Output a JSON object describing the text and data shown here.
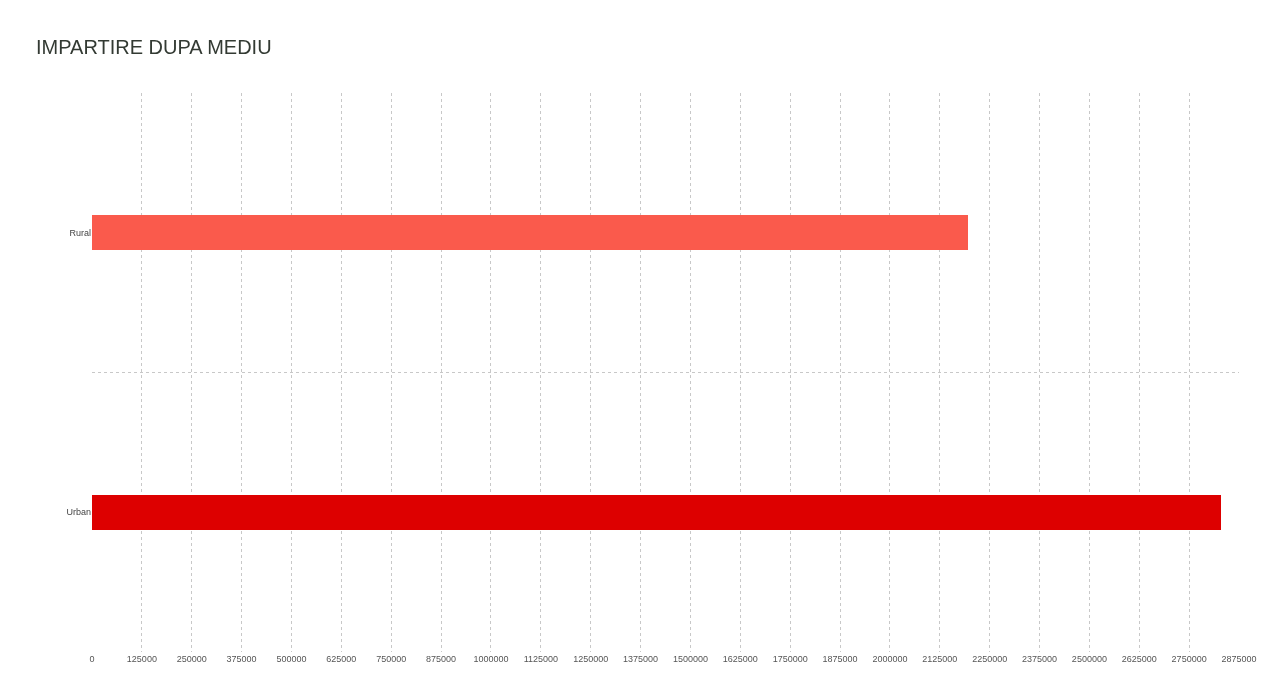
{
  "chart_data": {
    "type": "bar",
    "title": "IMPARTIRE DUPA MEDIU",
    "orientation": "horizontal",
    "categories": [
      "Rural",
      "Urban"
    ],
    "values": [
      2195000,
      2830000
    ],
    "colors": [
      "#fa5a4c",
      "#dd0000"
    ],
    "xlim": [
      0,
      2875000
    ],
    "xticks": [
      0,
      125000,
      250000,
      375000,
      500000,
      625000,
      750000,
      875000,
      1000000,
      1125000,
      1250000,
      1375000,
      1500000,
      1625000,
      1750000,
      1875000,
      2000000,
      2125000,
      2250000,
      2375000,
      2500000,
      2625000,
      2750000,
      2875000
    ],
    "grid": true
  }
}
